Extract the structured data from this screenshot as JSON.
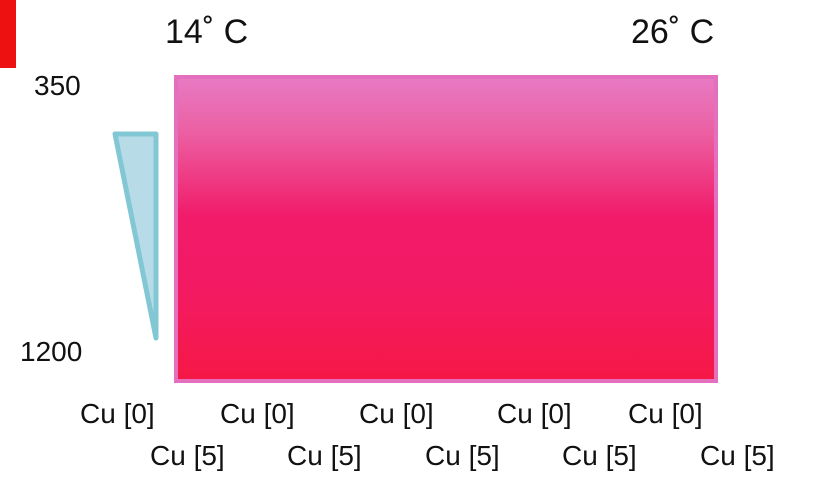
{
  "temperature": {
    "left": "14˚ C",
    "right": "26˚ C"
  },
  "depth": {
    "top": "350",
    "bottom": "1200"
  },
  "cu_labels": {
    "row1": [
      "Cu [0]",
      "Cu [0]",
      "Cu [0]",
      "Cu [0]",
      "Cu [0]"
    ],
    "row2": [
      "Cu [5]",
      "Cu [5]",
      "Cu [5]",
      "Cu [5]",
      "Cu [5]"
    ]
  },
  "colors": {
    "accent_red": "#ee1111",
    "rect_border": "#e56fbf",
    "rect_top": "#e77ac3",
    "rect_bottom": "#f51845",
    "wedge_fill": "#b8dbe8",
    "wedge_stroke": "#82c7d4"
  }
}
